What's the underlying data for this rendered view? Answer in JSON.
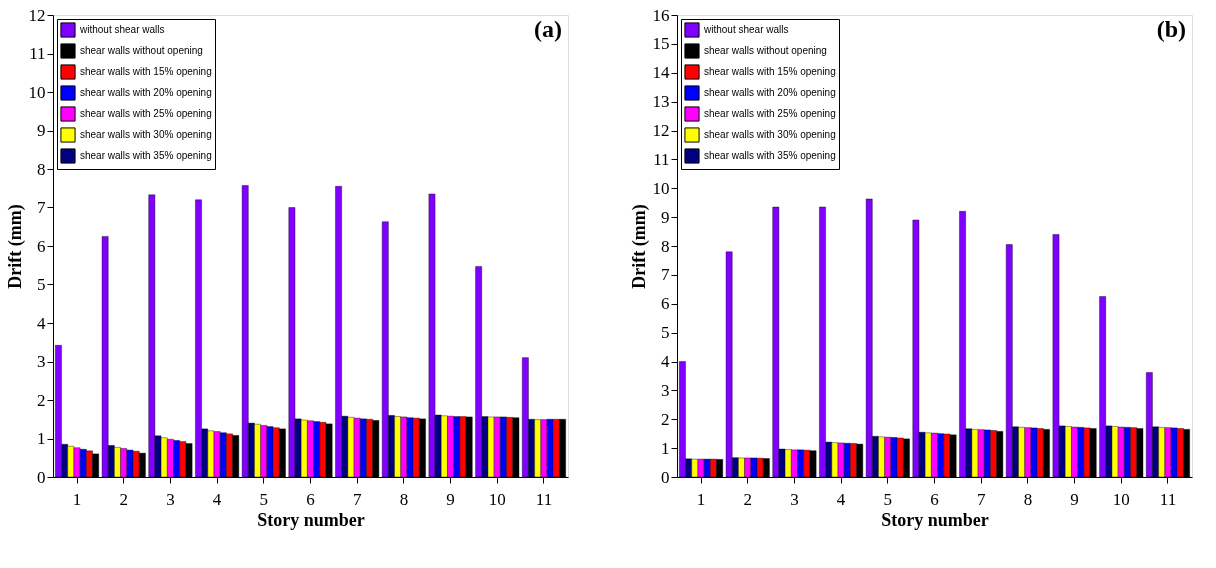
{
  "chart_data": [
    {
      "type": "bar",
      "title": "(a)",
      "xlabel": "Story number",
      "ylabel": "Drift (mm)",
      "categories": [
        "1",
        "2",
        "3",
        "4",
        "5",
        "6",
        "7",
        "8",
        "9",
        "10",
        "11"
      ],
      "ylim": [
        0,
        12
      ],
      "yticks": [
        0,
        1,
        2,
        3,
        4,
        5,
        6,
        7,
        8,
        9,
        10,
        11,
        12
      ],
      "grid": false,
      "legend": "top left",
      "series": [
        {
          "name": "without shear walls",
          "color": "#8000ff",
          "values": [
            3.42,
            6.25,
            7.33,
            7.2,
            7.57,
            7.0,
            7.55,
            6.63,
            7.35,
            5.47,
            3.1
          ]
        },
        {
          "name": "shear walls with 35% opening",
          "color": "#000080",
          "values": [
            0.85,
            0.82,
            1.07,
            1.25,
            1.4,
            1.51,
            1.58,
            1.6,
            1.61,
            1.57,
            1.5
          ]
        },
        {
          "name": "shear walls with 30% opening",
          "color": "#ffff00",
          "values": [
            0.8,
            0.77,
            1.02,
            1.2,
            1.37,
            1.48,
            1.55,
            1.57,
            1.59,
            1.56,
            1.49
          ]
        },
        {
          "name": "shear walls with 25% opening",
          "color": "#ff00ff",
          "values": [
            0.76,
            0.74,
            0.98,
            1.18,
            1.34,
            1.46,
            1.53,
            1.56,
            1.58,
            1.56,
            1.49
          ]
        },
        {
          "name": "shear walls with 20% opening",
          "color": "#0000ff",
          "values": [
            0.72,
            0.7,
            0.95,
            1.15,
            1.31,
            1.44,
            1.51,
            1.54,
            1.57,
            1.56,
            1.5
          ]
        },
        {
          "name": "shear walls with 15% opening",
          "color": "#ff0000",
          "values": [
            0.68,
            0.67,
            0.92,
            1.12,
            1.28,
            1.42,
            1.5,
            1.53,
            1.57,
            1.55,
            1.5
          ]
        },
        {
          "name": "shear walls without opening",
          "color": "#000000",
          "values": [
            0.6,
            0.62,
            0.87,
            1.08,
            1.25,
            1.38,
            1.47,
            1.51,
            1.56,
            1.54,
            1.5
          ]
        }
      ]
    },
    {
      "type": "bar",
      "title": "(b)",
      "xlabel": "Story number",
      "ylabel": "Drift (mm)",
      "categories": [
        "1",
        "2",
        "3",
        "4",
        "5",
        "6",
        "7",
        "8",
        "9",
        "10",
        "11"
      ],
      "ylim": [
        0,
        16
      ],
      "yticks": [
        0,
        1,
        2,
        3,
        4,
        5,
        6,
        7,
        8,
        9,
        10,
        11,
        12,
        13,
        14,
        15,
        16
      ],
      "grid": false,
      "legend": "top left",
      "series": [
        {
          "name": "without shear walls",
          "color": "#8000ff",
          "values": [
            4.0,
            7.8,
            9.35,
            9.35,
            9.63,
            8.9,
            9.2,
            8.05,
            8.4,
            6.25,
            3.62
          ]
        },
        {
          "name": "shear walls with 35% opening",
          "color": "#000080",
          "values": [
            0.63,
            0.67,
            0.97,
            1.21,
            1.41,
            1.55,
            1.67,
            1.74,
            1.77,
            1.77,
            1.74
          ]
        },
        {
          "name": "shear walls with 30% opening",
          "color": "#ffff00",
          "values": [
            0.62,
            0.66,
            0.95,
            1.19,
            1.39,
            1.53,
            1.65,
            1.72,
            1.75,
            1.75,
            1.72
          ]
        },
        {
          "name": "shear walls with 25% opening",
          "color": "#ff00ff",
          "values": [
            0.62,
            0.66,
            0.94,
            1.18,
            1.38,
            1.52,
            1.64,
            1.71,
            1.73,
            1.73,
            1.71
          ]
        },
        {
          "name": "shear walls with 20% opening",
          "color": "#0000ff",
          "values": [
            0.62,
            0.66,
            0.94,
            1.17,
            1.37,
            1.5,
            1.63,
            1.7,
            1.72,
            1.72,
            1.7
          ]
        },
        {
          "name": "shear walls with 15% opening",
          "color": "#ff0000",
          "values": [
            0.62,
            0.65,
            0.93,
            1.16,
            1.35,
            1.49,
            1.61,
            1.68,
            1.7,
            1.71,
            1.68
          ]
        },
        {
          "name": "shear walls without opening",
          "color": "#000000",
          "values": [
            0.61,
            0.64,
            0.91,
            1.14,
            1.32,
            1.46,
            1.58,
            1.65,
            1.68,
            1.68,
            1.65
          ]
        }
      ]
    }
  ]
}
